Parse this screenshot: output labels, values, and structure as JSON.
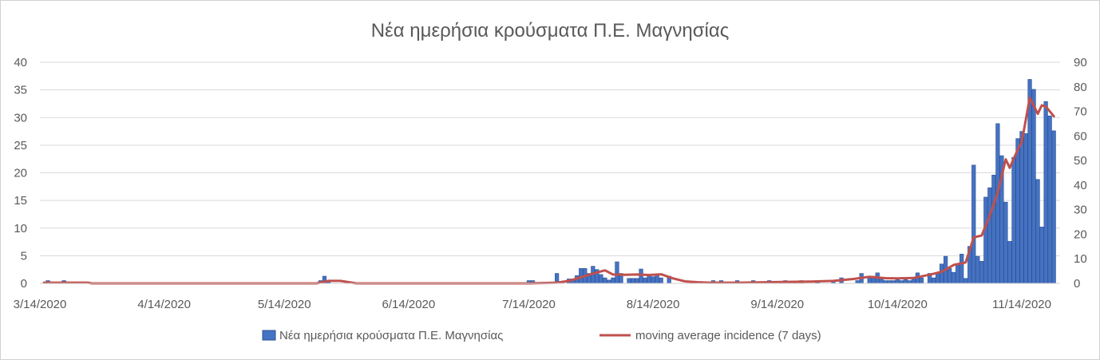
{
  "chart_data": {
    "type": "bar+line",
    "title": "Νέα ημερήσια κρούσματα Π.Ε. Μαγνησίας",
    "x_tick_labels": [
      "3/14/2020",
      "4/14/2020",
      "5/14/2020",
      "6/14/2020",
      "7/14/2020",
      "8/14/2020",
      "9/14/2020",
      "10/14/2020",
      "11/14/2020"
    ],
    "x_range": [
      "3/14/2020",
      "11/14/2020"
    ],
    "y_left": {
      "min": 0,
      "max": 40,
      "ticks": [
        "0",
        "5",
        "10",
        "15",
        "20",
        "25",
        "30",
        "35",
        "40"
      ]
    },
    "y_right": {
      "min": 0,
      "max": 90,
      "ticks": [
        "0",
        "10",
        "20",
        "30",
        "40",
        "50",
        "60",
        "70",
        "80",
        "90"
      ]
    },
    "gridlines": true,
    "legend_position": "bottom",
    "series": [
      {
        "name": "Νέα ημερήσια κρούσματα Π.Ε. Μαγνησίας",
        "type": "bar",
        "axis": "left",
        "color": "#4472C4",
        "points": [
          [
            "3/16/2020",
            0.5
          ],
          [
            "3/20/2020",
            0.5
          ],
          [
            "5/23/2020",
            0.5
          ],
          [
            "5/24/2020",
            1.3
          ],
          [
            "5/25/2020",
            0.5
          ],
          [
            "7/14/2020",
            0.5
          ],
          [
            "7/15/2020",
            0.5
          ],
          [
            "7/21/2020",
            1.8
          ],
          [
            "7/24/2020",
            0.8
          ],
          [
            "7/25/2020",
            0.8
          ],
          [
            "7/26/2020",
            1.4
          ],
          [
            "7/27/2020",
            2.7
          ],
          [
            "7/28/2020",
            2.7
          ],
          [
            "7/29/2020",
            1.8
          ],
          [
            "7/30/2020",
            3.1
          ],
          [
            "7/31/2020",
            2.5
          ],
          [
            "8/1/2020",
            1.6
          ],
          [
            "8/2/2020",
            1.0
          ],
          [
            "8/3/2020",
            0.6
          ],
          [
            "8/4/2020",
            1.0
          ],
          [
            "8/5/2020",
            3.9
          ],
          [
            "8/6/2020",
            1.8
          ],
          [
            "8/8/2020",
            0.9
          ],
          [
            "8/9/2020",
            0.9
          ],
          [
            "8/10/2020",
            0.9
          ],
          [
            "8/11/2020",
            2.6
          ],
          [
            "8/12/2020",
            1.0
          ],
          [
            "8/13/2020",
            1.6
          ],
          [
            "8/14/2020",
            1.2
          ],
          [
            "8/15/2020",
            1.6
          ],
          [
            "8/16/2020",
            1.0
          ],
          [
            "8/18/2020",
            1.3
          ],
          [
            "8/29/2020",
            0.5
          ],
          [
            "8/31/2020",
            0.5
          ],
          [
            "9/4/2020",
            0.5
          ],
          [
            "9/8/2020",
            0.5
          ],
          [
            "9/12/2020",
            0.5
          ],
          [
            "9/16/2020",
            0.5
          ],
          [
            "9/20/2020",
            0.5
          ],
          [
            "9/24/2020",
            0.5
          ],
          [
            "9/28/2020",
            0.5
          ],
          [
            "9/30/2020",
            1.0
          ],
          [
            "10/4/2020",
            0.5
          ],
          [
            "10/5/2020",
            1.8
          ],
          [
            "10/7/2020",
            1.0
          ],
          [
            "10/8/2020",
            1.3
          ],
          [
            "10/9/2020",
            1.9
          ],
          [
            "10/10/2020",
            1.0
          ],
          [
            "10/11/2020",
            0.5
          ],
          [
            "10/12/2020",
            0.5
          ],
          [
            "10/13/2020",
            0.5
          ],
          [
            "10/14/2020",
            0.8
          ],
          [
            "10/15/2020",
            0.5
          ],
          [
            "10/16/2020",
            0.8
          ],
          [
            "10/17/2020",
            0.5
          ],
          [
            "10/18/2020",
            0.9
          ],
          [
            "10/19/2020",
            1.9
          ],
          [
            "10/20/2020",
            1.0
          ],
          [
            "10/22/2020",
            1.8
          ],
          [
            "10/23/2020",
            1.0
          ],
          [
            "10/24/2020",
            1.8
          ],
          [
            "10/25/2020",
            3.5
          ],
          [
            "10/26/2020",
            4.9
          ],
          [
            "10/27/2020",
            2.7
          ],
          [
            "10/28/2020",
            2.0
          ],
          [
            "10/29/2020",
            3.3
          ],
          [
            "10/30/2020",
            5.3
          ],
          [
            "10/31/2020",
            0.9
          ],
          [
            "11/1/2020",
            6.7
          ],
          [
            "11/2/2020",
            21.4
          ],
          [
            "11/3/2020",
            4.9
          ],
          [
            "11/4/2020",
            4.0
          ],
          [
            "11/5/2020",
            15.6
          ],
          [
            "11/6/2020",
            17.3
          ],
          [
            "11/7/2020",
            19.6
          ],
          [
            "11/8/2020",
            28.9
          ],
          [
            "11/9/2020",
            23.1
          ],
          [
            "11/10/2020",
            14.7
          ],
          [
            "11/11/2020",
            7.6
          ],
          [
            "11/12/2020",
            22.8
          ],
          [
            "11/13/2020",
            26.2
          ],
          [
            "11/14/2020",
            27.5
          ],
          [
            "11/15/2020",
            27.1
          ],
          [
            "11/16/2020",
            36.9
          ],
          [
            "11/17/2020",
            35.1
          ],
          [
            "11/18/2020",
            18.8
          ],
          [
            "11/19/2020",
            10.2
          ],
          [
            "11/20/2020",
            32.9
          ],
          [
            "11/21/2020",
            30.3
          ],
          [
            "11/22/2020",
            27.6
          ]
        ]
      },
      {
        "name": "moving average incidence (7 days)",
        "type": "line",
        "axis": "right",
        "color": "#C0504D",
        "points": [
          [
            "3/15/2020",
            0.3
          ],
          [
            "3/19/2020",
            0.3
          ],
          [
            "3/26/2020",
            0.3
          ],
          [
            "3/27/2020",
            0
          ],
          [
            "5/22/2020",
            0
          ],
          [
            "5/25/2020",
            1.0
          ],
          [
            "5/28/2020",
            1.0
          ],
          [
            "6/1/2020",
            0
          ],
          [
            "7/14/2020",
            0
          ],
          [
            "7/21/2020",
            0.3
          ],
          [
            "7/24/2020",
            1.0
          ],
          [
            "7/27/2020",
            2.5
          ],
          [
            "7/30/2020",
            4.0
          ],
          [
            "8/2/2020",
            5.3
          ],
          [
            "8/4/2020",
            3.6
          ],
          [
            "8/7/2020",
            3.5
          ],
          [
            "8/10/2020",
            3.6
          ],
          [
            "8/13/2020",
            3.4
          ],
          [
            "8/16/2020",
            3.7
          ],
          [
            "8/19/2020",
            2.0
          ],
          [
            "8/22/2020",
            0.8
          ],
          [
            "8/25/2020",
            0.5
          ],
          [
            "8/28/2020",
            0.3
          ],
          [
            "9/5/2020",
            0.3
          ],
          [
            "9/15/2020",
            0.6
          ],
          [
            "9/22/2020",
            0.7
          ],
          [
            "9/28/2020",
            1.0
          ],
          [
            "10/3/2020",
            1.8
          ],
          [
            "10/7/2020",
            2.7
          ],
          [
            "10/11/2020",
            2.1
          ],
          [
            "10/14/2020",
            2.0
          ],
          [
            "10/18/2020",
            2.2
          ],
          [
            "10/22/2020",
            3.5
          ],
          [
            "10/25/2020",
            4.7
          ],
          [
            "10/28/2020",
            7.5
          ],
          [
            "10/31/2020",
            8.5
          ],
          [
            "11/2/2020",
            18.7
          ],
          [
            "11/4/2020",
            19.5
          ],
          [
            "11/6/2020",
            27.5
          ],
          [
            "11/8/2020",
            37.0
          ],
          [
            "11/10/2020",
            50.5
          ],
          [
            "11/11/2020",
            47.0
          ],
          [
            "11/13/2020",
            54.5
          ],
          [
            "11/14/2020",
            57.5
          ],
          [
            "11/16/2020",
            75.5
          ],
          [
            "11/18/2020",
            69.0
          ],
          [
            "11/19/2020",
            72.5
          ],
          [
            "11/20/2020",
            72.0
          ],
          [
            "11/22/2020",
            68.0
          ]
        ]
      }
    ]
  }
}
